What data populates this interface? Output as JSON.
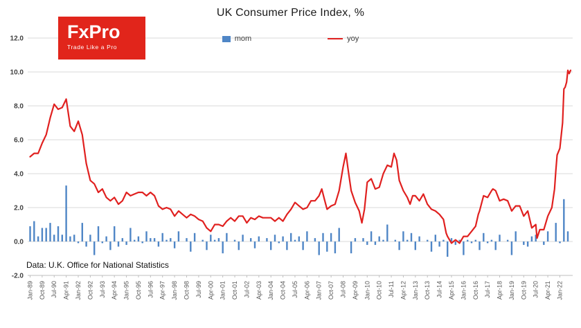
{
  "logo": {
    "brand": "FxPro",
    "tagline": "Trade Like a Pro",
    "bg_color": "#e1251b"
  },
  "chart": {
    "title": "UK Consumer Price Index, %",
    "footnote": "Data: U.K. Office for National Statistics",
    "legend": [
      {
        "label": "mom",
        "color": "#4f86c6",
        "type": "bar"
      },
      {
        "label": "yoy",
        "color": "#e0201f",
        "type": "line"
      }
    ]
  },
  "chart_data": {
    "type": "line",
    "title": "UK Consumer Price Index, %",
    "xlabel": "",
    "ylabel": "",
    "ylim": [
      -2,
      12
    ],
    "yticks": [
      -2,
      0,
      2,
      4,
      6,
      8,
      10,
      12
    ],
    "y_tick_labels": [
      "-2.0",
      "0.0",
      "2.0",
      "4.0",
      "6.0",
      "8.0",
      "10.0",
      "12.0"
    ],
    "grid": true,
    "legend_position": "top-center",
    "x_unit": "decimal_year",
    "x_ticks": {
      "start": 1989.0,
      "step": 0.75,
      "labels": [
        "Jan-89",
        "Oct-89",
        "Jul-90",
        "Apr-91",
        "Jan-92",
        "Oct-92",
        "Jul-93",
        "Apr-94",
        "Jan-95",
        "Oct-95",
        "Jul-96",
        "Apr-97",
        "Jan-98",
        "Oct-98",
        "Jul-99",
        "Apr-00",
        "Jan-01",
        "Oct-01",
        "Jul-02",
        "Apr-03",
        "Jan-04",
        "Oct-04",
        "Jul-05",
        "Apr-06",
        "Jan-07",
        "Oct-07",
        "Jul-08",
        "Apr-09",
        "Jan-10",
        "Oct-10",
        "Jul-11",
        "Apr-12",
        "Jan-13",
        "Oct-13",
        "Jul-14",
        "Apr-15",
        "Jan-16",
        "Oct-16",
        "Jul-17",
        "Apr-18",
        "Jan-19",
        "Oct-19",
        "Jul-20",
        "Apr-21",
        "Jan-22"
      ]
    },
    "series": [
      {
        "name": "mom",
        "render": "bar",
        "color": "#4f86c6",
        "x_start": 1989.0,
        "x_step": 0.25,
        "values": [
          0.9,
          1.2,
          0.3,
          0.8,
          0.8,
          1.1,
          0.4,
          0.9,
          0.4,
          3.3,
          0.3,
          0.4,
          -0.1,
          1.1,
          -0.3,
          0.4,
          -0.8,
          0.9,
          -0.1,
          0.3,
          -0.5,
          0.9,
          -0.3,
          0.2,
          -0.2,
          0.8,
          0.1,
          0.3,
          -0.1,
          0.6,
          0.2,
          0.2,
          -0.3,
          0.5,
          0.1,
          0.2,
          -0.4,
          0.6,
          0.0,
          0.2,
          -0.6,
          0.5,
          0.0,
          0.1,
          -0.5,
          0.4,
          0.1,
          0.2,
          -0.7,
          0.5,
          0.0,
          0.1,
          -0.5,
          0.4,
          0.0,
          0.2,
          -0.4,
          0.3,
          0.0,
          0.2,
          -0.5,
          0.4,
          -0.1,
          0.3,
          -0.5,
          0.5,
          0.1,
          0.3,
          -0.5,
          0.6,
          0.0,
          0.2,
          -0.8,
          0.5,
          -0.6,
          0.5,
          -0.7,
          0.8,
          0.0,
          0.0,
          -0.7,
          0.2,
          0.0,
          0.2,
          -0.2,
          0.6,
          -0.2,
          0.3,
          0.1,
          1.0,
          0.0,
          0.1,
          -0.5,
          0.6,
          0.1,
          0.5,
          -0.5,
          0.3,
          0.0,
          0.1,
          -0.6,
          0.4,
          -0.3,
          0.1,
          -0.9,
          0.2,
          -0.2,
          0.1,
          -0.8,
          0.1,
          -0.1,
          0.1,
          -0.5,
          0.5,
          -0.1,
          0.1,
          -0.5,
          0.4,
          0.0,
          0.1,
          -0.8,
          0.6,
          0.0,
          -0.2,
          -0.3,
          0.3,
          0.4,
          0.0,
          -0.2,
          0.6,
          0.0,
          1.1,
          -0.1,
          2.5,
          0.6
        ]
      },
      {
        "name": "yoy",
        "render": "line",
        "color": "#e0201f",
        "points": [
          [
            1989.0,
            5.0
          ],
          [
            1989.25,
            5.2
          ],
          [
            1989.5,
            5.2
          ],
          [
            1989.75,
            5.8
          ],
          [
            1990.0,
            6.3
          ],
          [
            1990.25,
            7.3
          ],
          [
            1990.5,
            8.1
          ],
          [
            1990.75,
            7.8
          ],
          [
            1991.0,
            7.9
          ],
          [
            1991.25,
            8.4
          ],
          [
            1991.42,
            7.3
          ],
          [
            1991.5,
            6.8
          ],
          [
            1991.75,
            6.5
          ],
          [
            1992.0,
            7.1
          ],
          [
            1992.25,
            6.3
          ],
          [
            1992.5,
            4.6
          ],
          [
            1992.75,
            3.6
          ],
          [
            1993.0,
            3.4
          ],
          [
            1993.25,
            2.9
          ],
          [
            1993.5,
            3.1
          ],
          [
            1993.75,
            2.6
          ],
          [
            1994.0,
            2.4
          ],
          [
            1994.25,
            2.6
          ],
          [
            1994.5,
            2.2
          ],
          [
            1994.75,
            2.4
          ],
          [
            1995.0,
            2.9
          ],
          [
            1995.25,
            2.7
          ],
          [
            1995.5,
            2.8
          ],
          [
            1995.75,
            2.9
          ],
          [
            1996.0,
            2.9
          ],
          [
            1996.25,
            2.7
          ],
          [
            1996.5,
            2.9
          ],
          [
            1996.75,
            2.7
          ],
          [
            1997.0,
            2.1
          ],
          [
            1997.25,
            1.9
          ],
          [
            1997.5,
            2.0
          ],
          [
            1997.75,
            1.9
          ],
          [
            1998.0,
            1.5
          ],
          [
            1998.25,
            1.8
          ],
          [
            1998.5,
            1.6
          ],
          [
            1998.75,
            1.4
          ],
          [
            1999.0,
            1.6
          ],
          [
            1999.25,
            1.5
          ],
          [
            1999.5,
            1.3
          ],
          [
            1999.75,
            1.2
          ],
          [
            2000.0,
            0.8
          ],
          [
            2000.25,
            0.6
          ],
          [
            2000.5,
            1.0
          ],
          [
            2000.75,
            1.0
          ],
          [
            2001.0,
            0.9
          ],
          [
            2001.25,
            1.2
          ],
          [
            2001.5,
            1.4
          ],
          [
            2001.75,
            1.2
          ],
          [
            2002.0,
            1.5
          ],
          [
            2002.25,
            1.5
          ],
          [
            2002.5,
            1.1
          ],
          [
            2002.75,
            1.4
          ],
          [
            2003.0,
            1.3
          ],
          [
            2003.25,
            1.5
          ],
          [
            2003.5,
            1.4
          ],
          [
            2003.75,
            1.4
          ],
          [
            2004.0,
            1.4
          ],
          [
            2004.25,
            1.2
          ],
          [
            2004.5,
            1.4
          ],
          [
            2004.75,
            1.2
          ],
          [
            2005.0,
            1.6
          ],
          [
            2005.25,
            1.9
          ],
          [
            2005.5,
            2.3
          ],
          [
            2005.75,
            2.1
          ],
          [
            2006.0,
            1.9
          ],
          [
            2006.25,
            2.0
          ],
          [
            2006.5,
            2.4
          ],
          [
            2006.75,
            2.4
          ],
          [
            2007.0,
            2.7
          ],
          [
            2007.17,
            3.1
          ],
          [
            2007.33,
            2.5
          ],
          [
            2007.5,
            1.9
          ],
          [
            2007.75,
            2.1
          ],
          [
            2008.0,
            2.2
          ],
          [
            2008.25,
            3.0
          ],
          [
            2008.5,
            4.4
          ],
          [
            2008.67,
            5.2
          ],
          [
            2008.83,
            4.1
          ],
          [
            2009.0,
            3.0
          ],
          [
            2009.25,
            2.3
          ],
          [
            2009.5,
            1.8
          ],
          [
            2009.67,
            1.1
          ],
          [
            2009.83,
            1.9
          ],
          [
            2010.0,
            3.5
          ],
          [
            2010.25,
            3.7
          ],
          [
            2010.5,
            3.1
          ],
          [
            2010.75,
            3.2
          ],
          [
            2011.0,
            4.0
          ],
          [
            2011.25,
            4.5
          ],
          [
            2011.5,
            4.4
          ],
          [
            2011.67,
            5.2
          ],
          [
            2011.83,
            4.8
          ],
          [
            2012.0,
            3.6
          ],
          [
            2012.25,
            3.0
          ],
          [
            2012.5,
            2.6
          ],
          [
            2012.67,
            2.2
          ],
          [
            2012.83,
            2.7
          ],
          [
            2013.0,
            2.7
          ],
          [
            2013.25,
            2.4
          ],
          [
            2013.5,
            2.8
          ],
          [
            2013.75,
            2.2
          ],
          [
            2014.0,
            1.9
          ],
          [
            2014.25,
            1.8
          ],
          [
            2014.5,
            1.6
          ],
          [
            2014.75,
            1.3
          ],
          [
            2014.92,
            0.5
          ],
          [
            2015.0,
            0.3
          ],
          [
            2015.25,
            -0.1
          ],
          [
            2015.5,
            0.1
          ],
          [
            2015.75,
            -0.1
          ],
          [
            2016.0,
            0.3
          ],
          [
            2016.25,
            0.3
          ],
          [
            2016.5,
            0.6
          ],
          [
            2016.75,
            0.9
          ],
          [
            2016.92,
            1.6
          ],
          [
            2017.0,
            1.8
          ],
          [
            2017.25,
            2.7
          ],
          [
            2017.5,
            2.6
          ],
          [
            2017.75,
            3.0
          ],
          [
            2017.83,
            3.1
          ],
          [
            2018.0,
            3.0
          ],
          [
            2018.25,
            2.4
          ],
          [
            2018.5,
            2.5
          ],
          [
            2018.75,
            2.4
          ],
          [
            2019.0,
            1.8
          ],
          [
            2019.25,
            2.1
          ],
          [
            2019.5,
            2.1
          ],
          [
            2019.75,
            1.5
          ],
          [
            2020.0,
            1.8
          ],
          [
            2020.25,
            0.8
          ],
          [
            2020.5,
            1.0
          ],
          [
            2020.58,
            0.2
          ],
          [
            2020.75,
            0.7
          ],
          [
            2021.0,
            0.7
          ],
          [
            2021.25,
            1.5
          ],
          [
            2021.5,
            2.0
          ],
          [
            2021.67,
            3.1
          ],
          [
            2021.75,
            4.2
          ],
          [
            2021.83,
            5.1
          ],
          [
            2022.0,
            5.5
          ],
          [
            2022.08,
            6.2
          ],
          [
            2022.17,
            7.0
          ],
          [
            2022.25,
            9.0
          ],
          [
            2022.33,
            9.1
          ],
          [
            2022.42,
            9.4
          ],
          [
            2022.5,
            10.1
          ],
          [
            2022.58,
            9.9
          ],
          [
            2022.67,
            10.1
          ]
        ]
      }
    ]
  }
}
